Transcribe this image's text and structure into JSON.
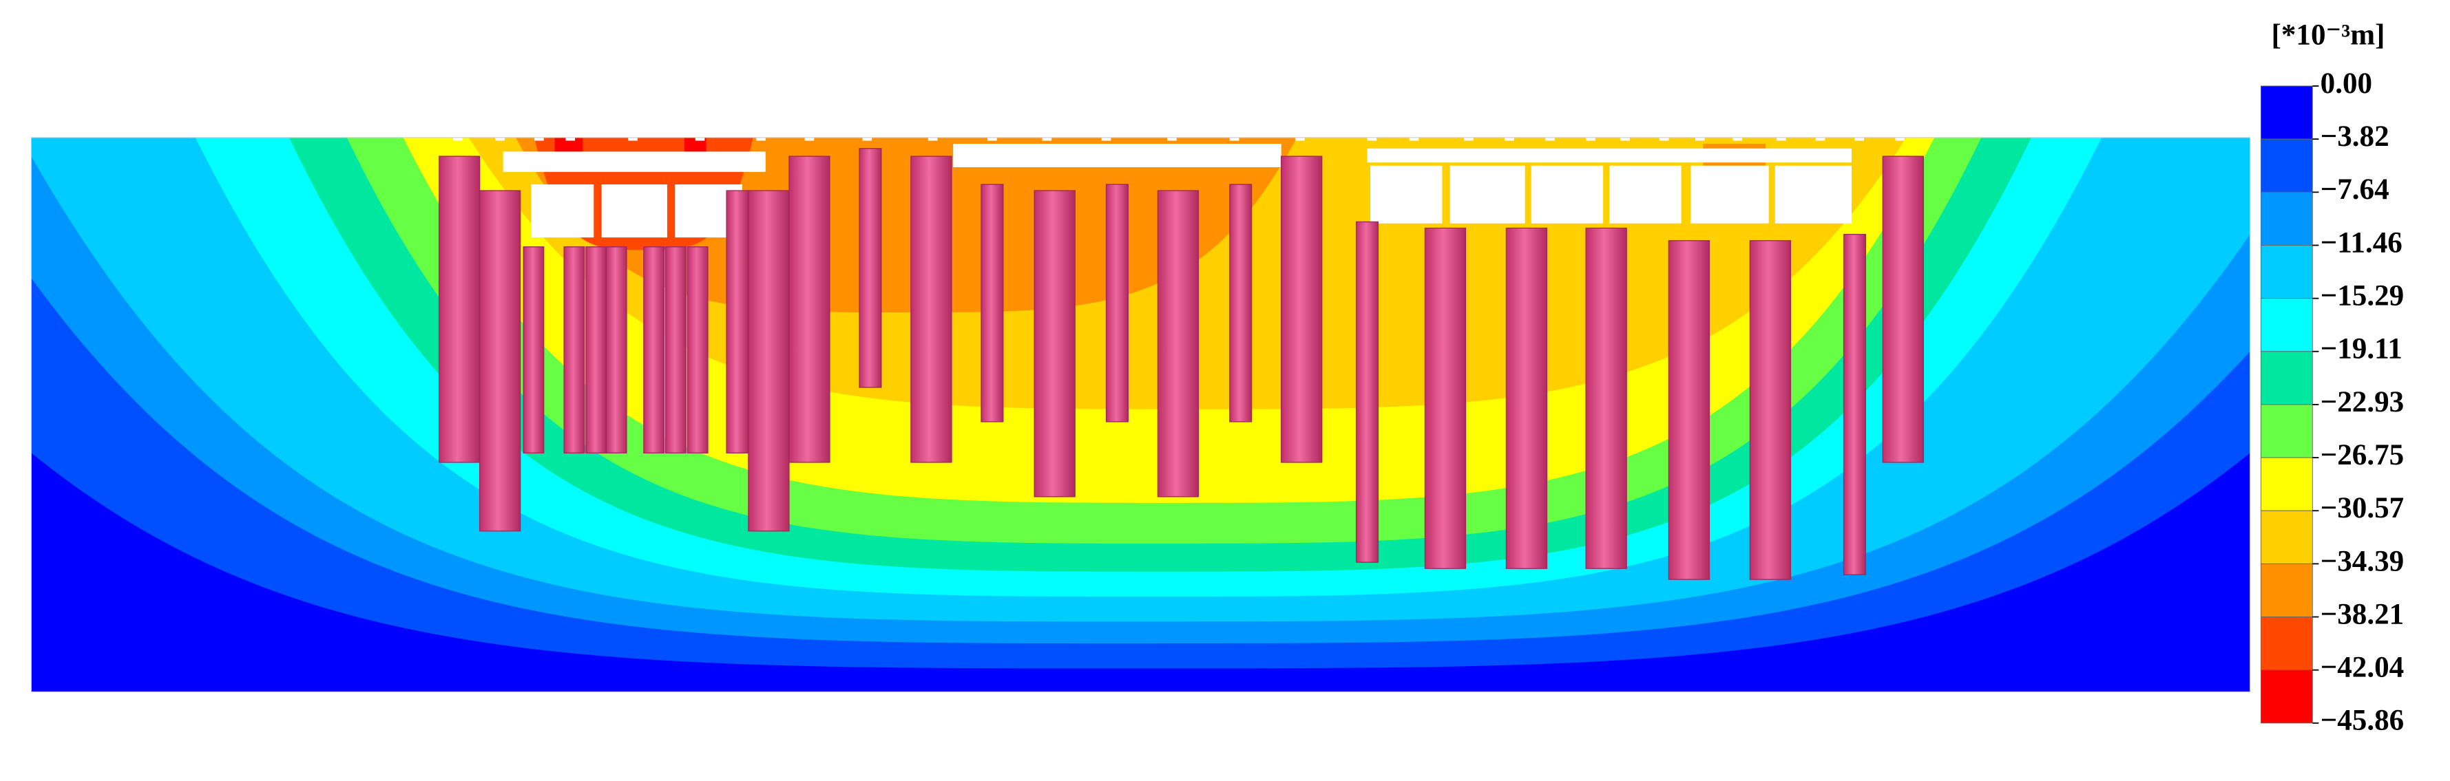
{
  "chart_data": {
    "type": "contour",
    "colorbar_title": "[*10⁻³m]",
    "levels": [
      {
        "value": 0,
        "label": "0.00"
      },
      {
        "value": -3.82,
        "label": "−3.82"
      },
      {
        "value": -7.64,
        "label": "−7.64"
      },
      {
        "value": -11.46,
        "label": "−11.46"
      },
      {
        "value": -15.29,
        "label": "−15.29"
      },
      {
        "value": -19.11,
        "label": "−19.11"
      },
      {
        "value": -22.93,
        "label": "−22.93"
      },
      {
        "value": -26.75,
        "label": "−26.75"
      },
      {
        "value": -30.57,
        "label": "−30.57"
      },
      {
        "value": -34.39,
        "label": "−34.39"
      },
      {
        "value": -38.21,
        "label": "−38.21"
      },
      {
        "value": -42.04,
        "label": "−42.04"
      },
      {
        "value": -45.86,
        "label": "−45.86"
      }
    ],
    "colors": [
      "#0000FF",
      "#0050FF",
      "#0096FF",
      "#00CCFF",
      "#00FFFF",
      "#00E8A0",
      "#66FF44",
      "#FFFF00",
      "#FFD000",
      "#FF9000",
      "#FF4800",
      "#FF0000"
    ]
  }
}
